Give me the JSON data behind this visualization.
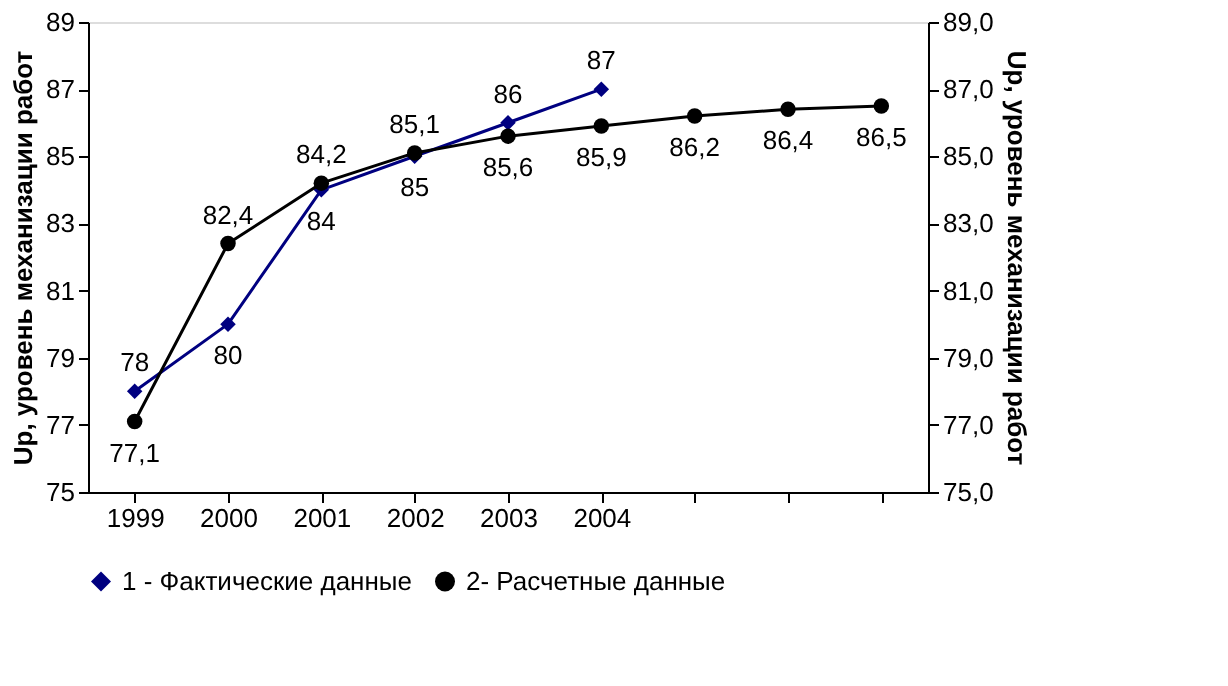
{
  "chart_data": {
    "type": "line",
    "ylabel": "Up, уровень механизации работ",
    "y2label": "Up, уровень механизации работ",
    "categories": [
      "1999",
      "2000",
      "2001",
      "2002",
      "2003",
      "2004",
      null,
      null,
      null
    ],
    "series": [
      {
        "name": "1 - Фактические данные",
        "color": "#000080",
        "marker": "diamond",
        "values": [
          78,
          80,
          84,
          85,
          86,
          87,
          null,
          null,
          null
        ],
        "value_labels": [
          "78",
          "80",
          "84",
          "85",
          "86",
          "87",
          null,
          null,
          null
        ]
      },
      {
        "name": "2- Расчетные данные",
        "color": "#000000",
        "marker": "circle",
        "axis": "y2",
        "values": [
          77.1,
          82.4,
          84.2,
          85.1,
          85.6,
          85.9,
          86.2,
          86.4,
          86.5
        ],
        "value_labels": [
          "77,1",
          "82,4",
          "84,2",
          "85,1",
          "85,6",
          "85,9",
          "86,2",
          "86,4",
          "86,5"
        ]
      }
    ],
    "ylim": [
      75,
      89
    ],
    "yticks": [
      75,
      77,
      79,
      81,
      83,
      85,
      87,
      89
    ],
    "y2lim": [
      75,
      89
    ],
    "y2ticks": [
      {
        "value": 75,
        "label": "75,0"
      },
      {
        "value": 77,
        "label": "77,0"
      },
      {
        "value": 79,
        "label": "79,0"
      },
      {
        "value": 81,
        "label": "81,0"
      },
      {
        "value": 83,
        "label": "83,0"
      },
      {
        "value": 85,
        "label": "85,0"
      },
      {
        "value": 87,
        "label": "87,0"
      },
      {
        "value": 89,
        "label": "89,0"
      }
    ],
    "grid": false,
    "legend": "bottom",
    "line_style": "solid"
  }
}
